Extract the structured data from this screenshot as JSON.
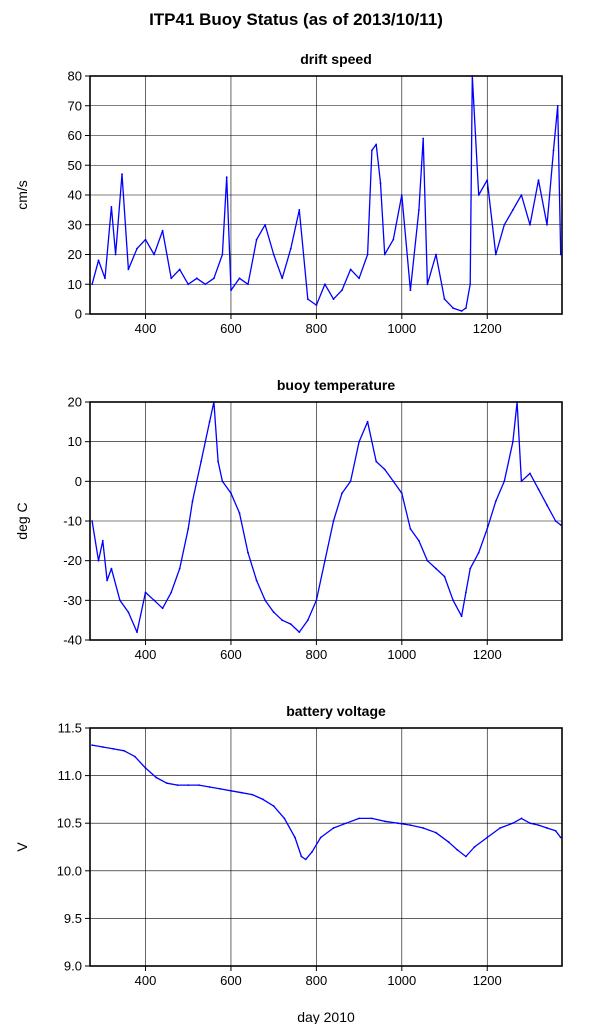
{
  "title": "ITP41 Buoy Status (as of 2013/10/11)",
  "chart_data": [
    {
      "type": "line",
      "title": "drift speed",
      "ylabel": "cm/s",
      "xlabel": "",
      "xlim": [
        270,
        1375
      ],
      "ylim": [
        0,
        80
      ],
      "xticks": [
        400,
        600,
        800,
        1000,
        1200
      ],
      "yticks": [
        0,
        10,
        20,
        30,
        40,
        50,
        60,
        70,
        80
      ],
      "grid": true,
      "color": "#0000ff",
      "series": [
        {
          "x": [
            275,
            290,
            305,
            320,
            330,
            345,
            360,
            380,
            400,
            420,
            440,
            460,
            480,
            500,
            520,
            540,
            560,
            580,
            590,
            600,
            620,
            640,
            660,
            680,
            700,
            720,
            740,
            760,
            780,
            800,
            820,
            840,
            860,
            880,
            900,
            920,
            930,
            940,
            950,
            960,
            980,
            1000,
            1020,
            1040,
            1050,
            1060,
            1080,
            1100,
            1120,
            1140,
            1150,
            1160,
            1165,
            1180,
            1200,
            1220,
            1240,
            1260,
            1280,
            1300,
            1320,
            1340,
            1355,
            1365,
            1372
          ],
          "y": [
            10,
            18,
            12,
            36,
            20,
            47,
            15,
            22,
            25,
            20,
            28,
            12,
            15,
            10,
            12,
            10,
            12,
            20,
            46,
            8,
            12,
            10,
            25,
            30,
            20,
            12,
            22,
            35,
            5,
            3,
            10,
            5,
            8,
            15,
            12,
            20,
            55,
            57,
            44,
            20,
            25,
            40,
            8,
            35,
            59,
            10,
            20,
            5,
            2,
            1,
            2,
            10,
            80,
            40,
            45,
            20,
            30,
            35,
            40,
            30,
            45,
            30,
            55,
            70,
            20
          ]
        }
      ]
    },
    {
      "type": "line",
      "title": "buoy temperature",
      "ylabel": "deg C",
      "xlabel": "",
      "xlim": [
        270,
        1375
      ],
      "ylim": [
        -40,
        20
      ],
      "xticks": [
        400,
        600,
        800,
        1000,
        1200
      ],
      "yticks": [
        -40,
        -30,
        -20,
        -10,
        0,
        10,
        20
      ],
      "grid": true,
      "color": "#0000ff",
      "series": [
        {
          "x": [
            275,
            290,
            300,
            310,
            320,
            340,
            360,
            380,
            400,
            420,
            440,
            460,
            480,
            500,
            510,
            520,
            530,
            540,
            550,
            560,
            570,
            580,
            600,
            620,
            640,
            660,
            680,
            700,
            720,
            740,
            760,
            780,
            800,
            820,
            840,
            860,
            880,
            900,
            920,
            940,
            960,
            980,
            1000,
            1020,
            1040,
            1060,
            1080,
            1100,
            1120,
            1140,
            1150,
            1160,
            1180,
            1200,
            1220,
            1240,
            1260,
            1270,
            1280,
            1300,
            1320,
            1340,
            1360,
            1372
          ],
          "y": [
            -10,
            -20,
            -15,
            -25,
            -22,
            -30,
            -33,
            -38,
            -28,
            -30,
            -32,
            -28,
            -22,
            -12,
            -5,
            0,
            5,
            10,
            15,
            20,
            5,
            0,
            -3,
            -8,
            -18,
            -25,
            -30,
            -33,
            -35,
            -36,
            -38,
            -35,
            -30,
            -20,
            -10,
            -3,
            0,
            10,
            15,
            5,
            3,
            0,
            -3,
            -12,
            -15,
            -20,
            -22,
            -24,
            -30,
            -34,
            -28,
            -22,
            -18,
            -12,
            -5,
            0,
            10,
            20,
            0,
            2,
            -2,
            -6,
            -10,
            -11
          ]
        }
      ]
    },
    {
      "type": "line",
      "title": "battery voltage",
      "ylabel": "V",
      "xlabel": "day 2010",
      "xlim": [
        270,
        1375
      ],
      "ylim": [
        9.0,
        11.5
      ],
      "xticks": [
        400,
        600,
        800,
        1000,
        1200
      ],
      "yticks": [
        "9.0",
        "9.5",
        "10.0",
        "10.5",
        "11.0",
        "11.5"
      ],
      "grid": true,
      "color": "#0000ff",
      "series": [
        {
          "x": [
            275,
            300,
            325,
            350,
            375,
            400,
            425,
            450,
            475,
            500,
            525,
            550,
            575,
            600,
            625,
            650,
            675,
            700,
            725,
            750,
            765,
            775,
            790,
            810,
            840,
            870,
            900,
            930,
            960,
            990,
            1020,
            1050,
            1080,
            1110,
            1130,
            1150,
            1170,
            1200,
            1230,
            1260,
            1280,
            1300,
            1320,
            1340,
            1360,
            1372
          ],
          "y": [
            11.32,
            11.3,
            11.28,
            11.26,
            11.2,
            11.08,
            10.98,
            10.92,
            10.9,
            10.9,
            10.9,
            10.88,
            10.86,
            10.84,
            10.82,
            10.8,
            10.75,
            10.68,
            10.55,
            10.35,
            10.15,
            10.12,
            10.2,
            10.35,
            10.45,
            10.5,
            10.55,
            10.55,
            10.52,
            10.5,
            10.48,
            10.45,
            10.4,
            10.3,
            10.22,
            10.15,
            10.25,
            10.35,
            10.45,
            10.5,
            10.55,
            10.5,
            10.48,
            10.45,
            10.42,
            10.35
          ]
        }
      ]
    }
  ]
}
